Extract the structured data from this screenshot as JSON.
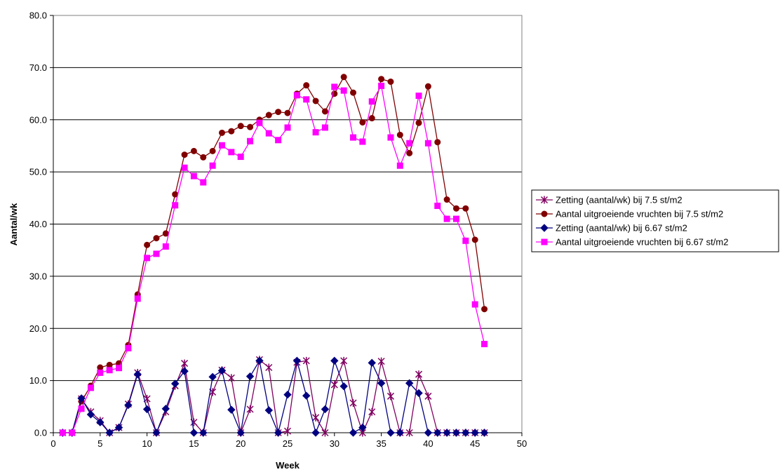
{
  "chart_data": {
    "type": "line",
    "title": "",
    "xlabel": "Week",
    "ylabel": "Aantal/wk",
    "xlim": [
      0,
      50
    ],
    "ylim": [
      0,
      80
    ],
    "x_ticks": [
      0,
      5,
      10,
      15,
      20,
      25,
      30,
      35,
      40,
      45,
      50
    ],
    "y_ticks": [
      "0.0",
      "10.0",
      "20.0",
      "30.0",
      "40.0",
      "50.0",
      "60.0",
      "70.0",
      "80.0"
    ],
    "grid": "horizontal",
    "legend_position": "right",
    "series": [
      {
        "name": "Zetting (aantal/wk) bij 7.5 st/m2",
        "color": "#800060",
        "marker": "star",
        "x": [
          1,
          2,
          3,
          4,
          5,
          6,
          7,
          8,
          9,
          10,
          11,
          12,
          13,
          14,
          15,
          16,
          17,
          18,
          19,
          20,
          21,
          22,
          23,
          24,
          25,
          26,
          27,
          28,
          29,
          30,
          31,
          32,
          33,
          34,
          35,
          36,
          37,
          38,
          39,
          40,
          41,
          42,
          43,
          44,
          45,
          46
        ],
        "values": [
          0,
          0,
          6.5,
          4,
          2.3,
          0,
          1,
          5.5,
          11.5,
          6.5,
          0,
          4,
          9,
          13.3,
          2,
          0,
          7.8,
          12,
          10.5,
          0,
          4.5,
          14,
          12.5,
          0,
          0.3,
          13.5,
          13.8,
          2.9,
          0,
          9.2,
          13.8,
          5.7,
          0,
          4,
          13.7,
          7,
          0,
          0,
          11.2,
          7,
          0,
          0,
          0,
          0,
          0,
          0
        ]
      },
      {
        "name": "Aantal uitgroeiende vruchten bij 7.5 st/m2",
        "color": "#800000",
        "marker": "circle",
        "x": [
          1,
          2,
          3,
          4,
          5,
          6,
          7,
          8,
          9,
          10,
          11,
          12,
          13,
          14,
          15,
          16,
          17,
          18,
          19,
          20,
          21,
          22,
          23,
          24,
          25,
          26,
          27,
          28,
          29,
          30,
          31,
          32,
          33,
          34,
          35,
          36,
          37,
          38,
          39,
          40,
          41,
          42,
          43,
          44,
          45,
          46
        ],
        "values": [
          0,
          0,
          6,
          9,
          12.5,
          13,
          13.3,
          16.8,
          26.5,
          36,
          37.3,
          38.2,
          45.7,
          53.3,
          54,
          52.8,
          54,
          57.5,
          57.8,
          58.8,
          58.6,
          60,
          60.9,
          61.5,
          61.3,
          65,
          66.6,
          63.6,
          61.6,
          65,
          68.2,
          65.2,
          59.5,
          60.3,
          67.8,
          67.3,
          57.1,
          53.6,
          59.4,
          66.4,
          55.7,
          44.7,
          43,
          43,
          37,
          23.7
        ]
      },
      {
        "name": "Zetting (aantal/wk) bij 6.67 st/m2",
        "color": "#000080",
        "marker": "diamond",
        "x": [
          1,
          2,
          3,
          4,
          5,
          6,
          7,
          8,
          9,
          10,
          11,
          12,
          13,
          14,
          15,
          16,
          17,
          18,
          19,
          20,
          21,
          22,
          23,
          24,
          25,
          26,
          27,
          28,
          29,
          30,
          31,
          32,
          33,
          34,
          35,
          36,
          37,
          38,
          39,
          40,
          41,
          42,
          43,
          44,
          45,
          46
        ],
        "values": [
          0,
          0,
          6.6,
          3.5,
          2,
          0,
          1,
          5.3,
          11.2,
          4.5,
          0,
          4.6,
          9.4,
          11.8,
          0,
          0,
          10.7,
          11.9,
          4.4,
          0,
          10.8,
          13.8,
          4.3,
          0,
          7.3,
          13.8,
          7.1,
          0,
          4.5,
          13.8,
          8.9,
          0,
          1,
          13.4,
          9.5,
          0,
          0,
          9.5,
          7.6,
          0,
          0,
          0,
          0,
          0,
          0,
          0
        ]
      },
      {
        "name": "Aantal uitgroeiende vruchten bij 6.67 st/m2",
        "color": "#ff00ff",
        "marker": "square",
        "x": [
          1,
          2,
          3,
          4,
          5,
          6,
          7,
          8,
          9,
          10,
          11,
          12,
          13,
          14,
          15,
          16,
          17,
          18,
          19,
          20,
          21,
          22,
          23,
          24,
          25,
          26,
          27,
          28,
          29,
          30,
          31,
          32,
          33,
          34,
          35,
          36,
          37,
          38,
          39,
          40,
          41,
          42,
          43,
          44,
          45,
          46
        ],
        "values": [
          0,
          0,
          4.6,
          8.6,
          11.5,
          12,
          12.4,
          16.2,
          25.7,
          33.5,
          34.3,
          35.7,
          43.6,
          50.8,
          49.2,
          48,
          51.2,
          55.1,
          53.8,
          52.9,
          55.9,
          59.4,
          57.4,
          56.1,
          58.5,
          64.7,
          63.9,
          57.6,
          58.5,
          66.3,
          65.6,
          56.6,
          55.8,
          63.5,
          66.5,
          56.6,
          51.2,
          55.5,
          64.6,
          55.5,
          43.5,
          41,
          41,
          36.8,
          24.6,
          17
        ]
      }
    ]
  }
}
